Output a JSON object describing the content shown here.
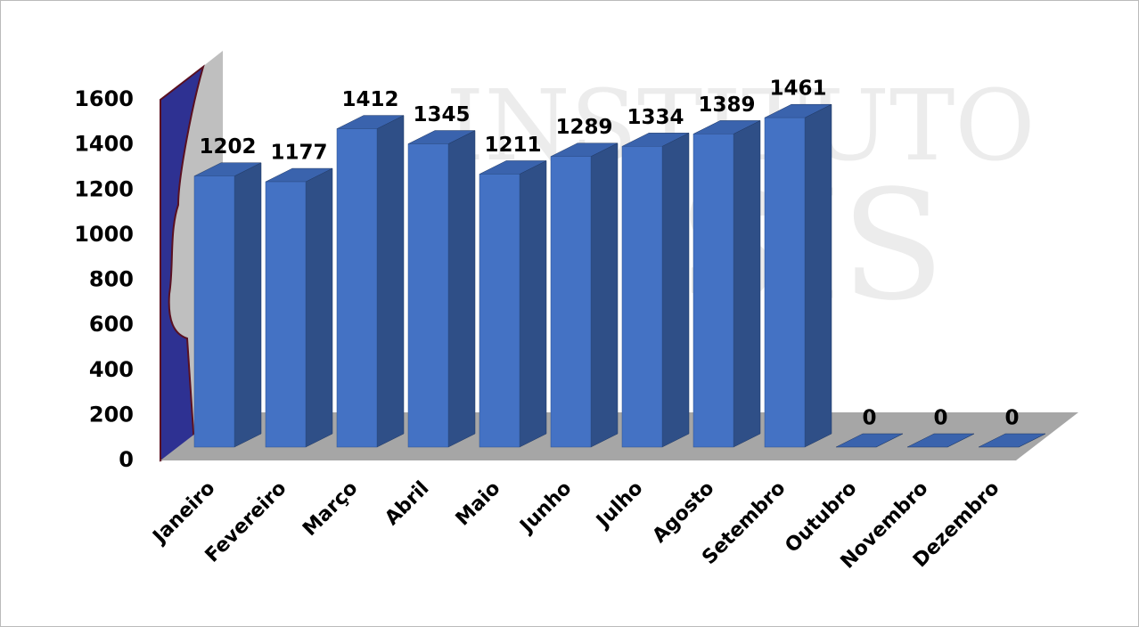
{
  "chart_data": {
    "type": "bar3d",
    "watermark": [
      "INSTITUTO",
      "SIS"
    ],
    "categories": [
      "Janeiro",
      "Fevereiro",
      "Março",
      "Abril",
      "Maio",
      "Junho",
      "Julho",
      "Agosto",
      "Setembro",
      "Outubro",
      "Novembro",
      "Dezembro"
    ],
    "values": [
      1202,
      1177,
      1412,
      1345,
      1211,
      1289,
      1334,
      1389,
      1461,
      0,
      0,
      0
    ],
    "color": "#4472c4",
    "ylim": [
      0,
      1600
    ],
    "yticks": [
      0,
      200,
      400,
      600,
      800,
      1000,
      1200,
      1400,
      1600
    ],
    "grid": false
  }
}
